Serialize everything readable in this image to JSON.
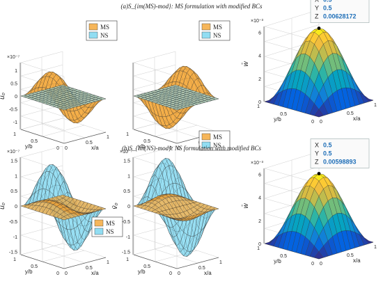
{
  "figure": {
    "titles": [
      "(a)S_{im(MS)-mod}: MS formulation with modified BCs",
      "(b)S_{im(NS)-mod}: NS formulation with modified BCs"
    ]
  },
  "chart_data": [
    {
      "type": "surface",
      "panel": "a-left",
      "zlabel": "ū₀",
      "xlabel": "x/a",
      "ylabel": "y/b",
      "zscale": "×10⁻⁷",
      "zticks": [
        "-1",
        "-0.5",
        "0",
        "0.5",
        "1"
      ],
      "xticks": [
        "0",
        "0.5",
        "1"
      ],
      "yticks": [
        "0",
        "0.5",
        "1"
      ],
      "zlim": [
        -1.3,
        1.3
      ],
      "legend": {
        "entries": [
          "MS",
          "NS"
        ],
        "placement": "top-right"
      },
      "series": [
        {
          "name": "MS",
          "peak": 1.1,
          "shape": "sin(2πx)·sin(πy)",
          "color": "#f4a93d"
        },
        {
          "name": "NS",
          "peak": 0.0,
          "shape": "flat",
          "color": "#7ed7f0"
        }
      ]
    },
    {
      "type": "surface",
      "panel": "a-middle",
      "zlabel": "",
      "xlabel": "x/a",
      "ylabel": "y/b",
      "zticks": [],
      "xticks": [
        "0",
        "0.5",
        "1"
      ],
      "yticks": [
        "0",
        "0.5",
        "1"
      ],
      "legend": {
        "entries": [
          "MS",
          "NS"
        ],
        "placement": "top-right"
      },
      "series": [
        {
          "name": "MS",
          "peak": -1.1,
          "shape": "sin(2πx)·sin(πy)",
          "color": "#f4a93d"
        },
        {
          "name": "NS",
          "peak": 0.0,
          "shape": "flat",
          "color": "#7ed7f0"
        }
      ]
    },
    {
      "type": "surface",
      "panel": "a-right",
      "zlabel": "w̄",
      "xlabel": "x/a",
      "ylabel": "y/b",
      "zscale": "×10⁻³",
      "zticks": [
        "0",
        "2",
        "4",
        "6"
      ],
      "xticks": [
        "0",
        "0.5",
        "1"
      ],
      "yticks": [
        "0",
        "0.5",
        "1"
      ],
      "colormap": "parula",
      "peak": 0.00628172,
      "datatip": {
        "X": "0.5",
        "Y": "0.5",
        "Z": "0.00628172"
      }
    },
    {
      "type": "surface",
      "panel": "b-left",
      "zlabel": "ū₀",
      "xlabel": "x/a",
      "ylabel": "y/b",
      "zscale": "×10⁻⁷",
      "zticks": [
        "-1.5",
        "-1",
        "-0.5",
        "0",
        "0.5",
        "1",
        "1.5"
      ],
      "xticks": [
        "0",
        "0.5",
        "1"
      ],
      "yticks": [
        "0",
        "0.5",
        "1"
      ],
      "legend": {
        "entries": [
          "MS",
          "NS"
        ],
        "placement": "bottom-right"
      },
      "series": [
        {
          "name": "MS",
          "peak": 0.3,
          "shape": "sin(2πx)·sin(πy)",
          "color": "#f4a93d"
        },
        {
          "name": "NS",
          "peak": 1.5,
          "shape": "sin(2πx)·sin(πy)",
          "color": "#7ed7f0"
        }
      ]
    },
    {
      "type": "surface",
      "panel": "b-middle",
      "zlabel": "v̄₀",
      "xlabel": "x/a",
      "ylabel": "y/b",
      "zscale": "×10⁻⁷",
      "zticks": [
        "-1.5",
        "-1",
        "-0.5",
        "0",
        "0.5",
        "1",
        "1.5"
      ],
      "xticks": [
        "0",
        "0.5",
        "1"
      ],
      "yticks": [
        "0",
        "0.5",
        "1"
      ],
      "legend": {
        "entries": [
          "MS",
          "NS"
        ],
        "placement": "top-right"
      },
      "series": [
        {
          "name": "MS",
          "peak": -0.3,
          "shape": "sin(πx)·sin(2πy)",
          "color": "#f4a93d"
        },
        {
          "name": "NS",
          "peak": -1.5,
          "shape": "sin(πx)·sin(2πy)",
          "color": "#7ed7f0"
        }
      ]
    },
    {
      "type": "surface",
      "panel": "b-right",
      "zlabel": "w̄",
      "xlabel": "x/a",
      "ylabel": "y/b",
      "zscale": "×10⁻³",
      "zticks": [
        "0",
        "2",
        "4",
        "6"
      ],
      "xticks": [
        "0",
        "0.5",
        "1"
      ],
      "yticks": [
        "0",
        "0.5",
        "1"
      ],
      "colormap": "parula",
      "peak": 0.00598893,
      "datatip": {
        "X": "0.5",
        "Y": "0.5",
        "Z": "0.00598893"
      }
    }
  ]
}
